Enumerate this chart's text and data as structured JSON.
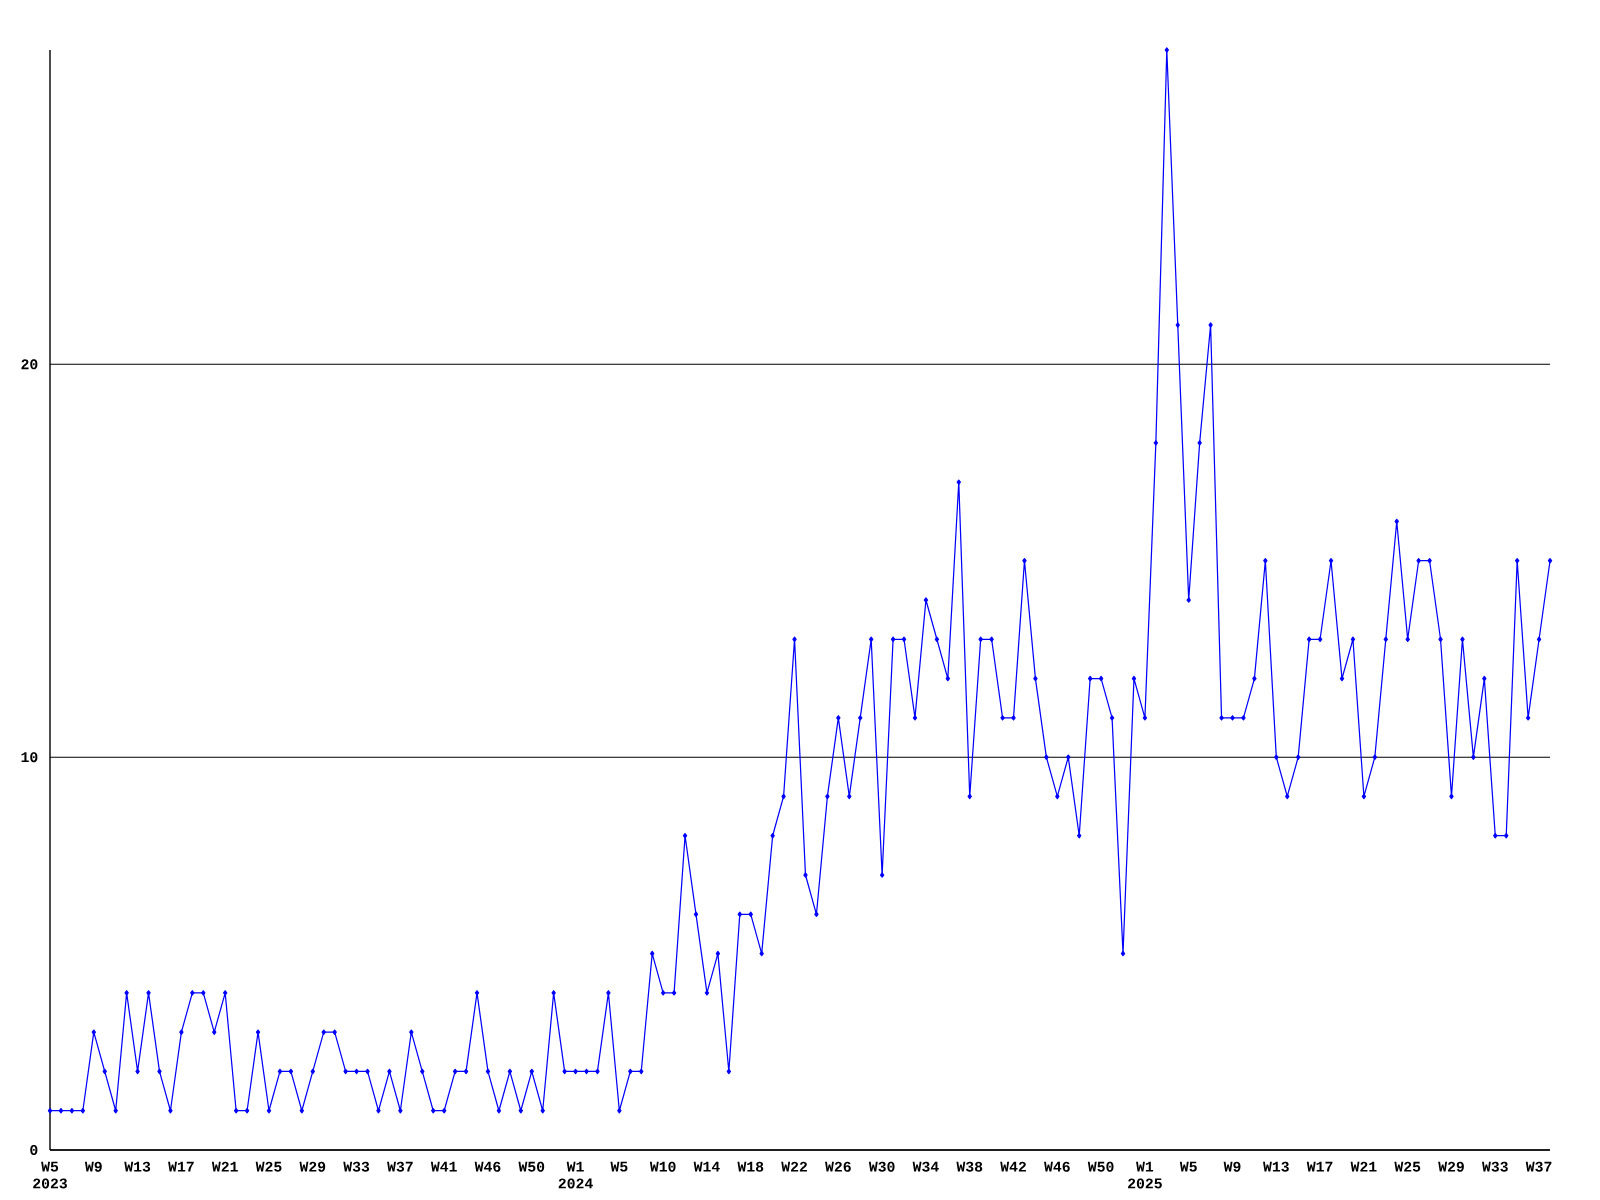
{
  "chart_data": {
    "type": "line",
    "categories": [
      "W5 2023",
      null,
      null,
      null,
      "W9",
      null,
      null,
      null,
      "W13",
      null,
      null,
      null,
      "W17",
      null,
      null,
      null,
      "W21",
      null,
      null,
      null,
      "W25",
      null,
      null,
      null,
      "W29",
      null,
      null,
      null,
      "W33",
      null,
      null,
      null,
      "W37",
      null,
      null,
      null,
      "W41",
      null,
      null,
      null,
      "W46",
      null,
      null,
      null,
      "W50",
      null,
      null,
      null,
      "W1 2024",
      null,
      null,
      null,
      "W5",
      null,
      null,
      null,
      "W10",
      null,
      null,
      null,
      "W14",
      null,
      null,
      null,
      "W18",
      null,
      null,
      null,
      "W22",
      null,
      null,
      null,
      "W26",
      null,
      null,
      null,
      "W30",
      null,
      null,
      null,
      "W34",
      null,
      null,
      null,
      "W38",
      null,
      null,
      null,
      "W42",
      null,
      null,
      null,
      "W46",
      null,
      null,
      null,
      "W50",
      null,
      null,
      null,
      "W1 2025",
      null,
      null,
      null,
      "W5",
      null,
      null,
      null,
      "W9",
      null,
      null,
      null,
      "W13",
      null,
      null,
      null,
      "W17",
      null,
      null,
      null,
      "W21",
      null,
      null,
      null,
      "W25",
      null,
      null,
      null,
      "W29",
      null,
      null,
      null,
      "W33",
      null,
      null,
      null,
      "W37",
      null
    ],
    "series": [
      {
        "color": "#0000ff",
        "values": [
          1,
          1,
          1,
          1,
          3,
          2,
          1,
          4,
          2,
          4,
          2,
          1,
          3,
          4,
          4,
          3,
          4,
          1,
          1,
          3,
          1,
          2,
          2,
          1,
          2,
          3,
          3,
          2,
          2,
          2,
          1,
          2,
          1,
          3,
          2,
          1,
          1,
          2,
          2,
          4,
          2,
          1,
          2,
          1,
          2,
          1,
          4,
          2,
          2,
          2,
          2,
          4,
          1,
          2,
          2,
          5,
          4,
          4,
          8,
          6,
          4,
          5,
          2,
          6,
          6,
          5,
          8,
          9,
          13,
          7,
          6,
          9,
          11,
          9,
          11,
          13,
          7,
          13,
          13,
          11,
          14,
          13,
          12,
          17,
          9,
          13,
          13,
          11,
          11,
          15,
          12,
          10,
          9,
          10,
          8,
          12,
          12,
          11,
          5,
          12,
          11,
          18,
          28,
          21,
          14,
          18,
          21,
          11,
          11,
          11,
          12,
          15,
          10,
          9,
          10,
          13,
          13,
          15,
          12,
          13,
          9,
          10,
          13,
          16,
          13,
          15,
          15,
          13,
          9,
          13,
          10,
          12,
          8,
          8,
          15,
          11,
          13,
          15
        ]
      }
    ],
    "ylim": [
      0,
      28
    ],
    "yticks": [
      0,
      10,
      20
    ],
    "grid": "y",
    "marker": "diamond",
    "line_style": "solid"
  }
}
